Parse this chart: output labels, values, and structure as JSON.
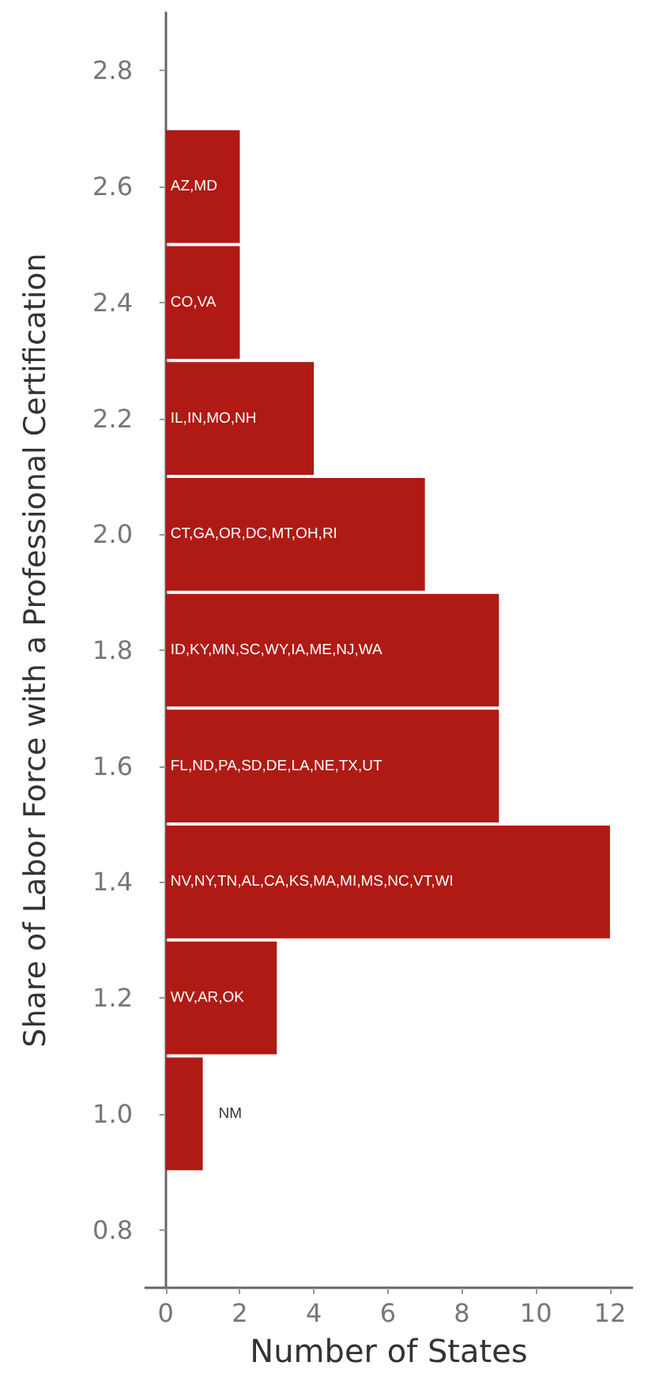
{
  "chart_data": {
    "type": "histogram",
    "orientation": "horizontal",
    "xlabel": "Number of States",
    "ylabel": "Share of Labor Force with a Professional Certification",
    "bins": [
      0.9,
      1.1,
      1.3,
      1.5,
      1.7,
      1.9,
      2.1,
      2.3,
      2.5,
      2.7
    ],
    "values": [
      1,
      3,
      12,
      9,
      9,
      7,
      4,
      2,
      2
    ],
    "value_labels": [
      "NM",
      "WV,AR,OK",
      "NV,NY,TN,AL,CA,KS,MA,MI,MS,NC,VT,WI",
      "FL,ND,PA,SD,DE,LA,NE,TX,UT",
      "ID,KY,MN,SC,WY,IA,ME,NJ,WA",
      "CT,GA,OR,DC,MT,OH,RI",
      "IL,IN,MO,NH",
      "CO,VA",
      "AZ,MD"
    ],
    "color": "#b01a14",
    "xlim": [
      -0.55,
      12.6
    ],
    "xticks": [
      0,
      2,
      4,
      6,
      8,
      10,
      12
    ],
    "ylim": [
      0.7,
      2.9
    ],
    "yticks": [
      0.8,
      {
        "value": 1,
        "label": "1.0"
      },
      1.2,
      1.4,
      1.6,
      1.8,
      {
        "value": 2,
        "label": "2.0"
      },
      2.2,
      2.4,
      2.6,
      2.8
    ],
    "grid": false
  }
}
